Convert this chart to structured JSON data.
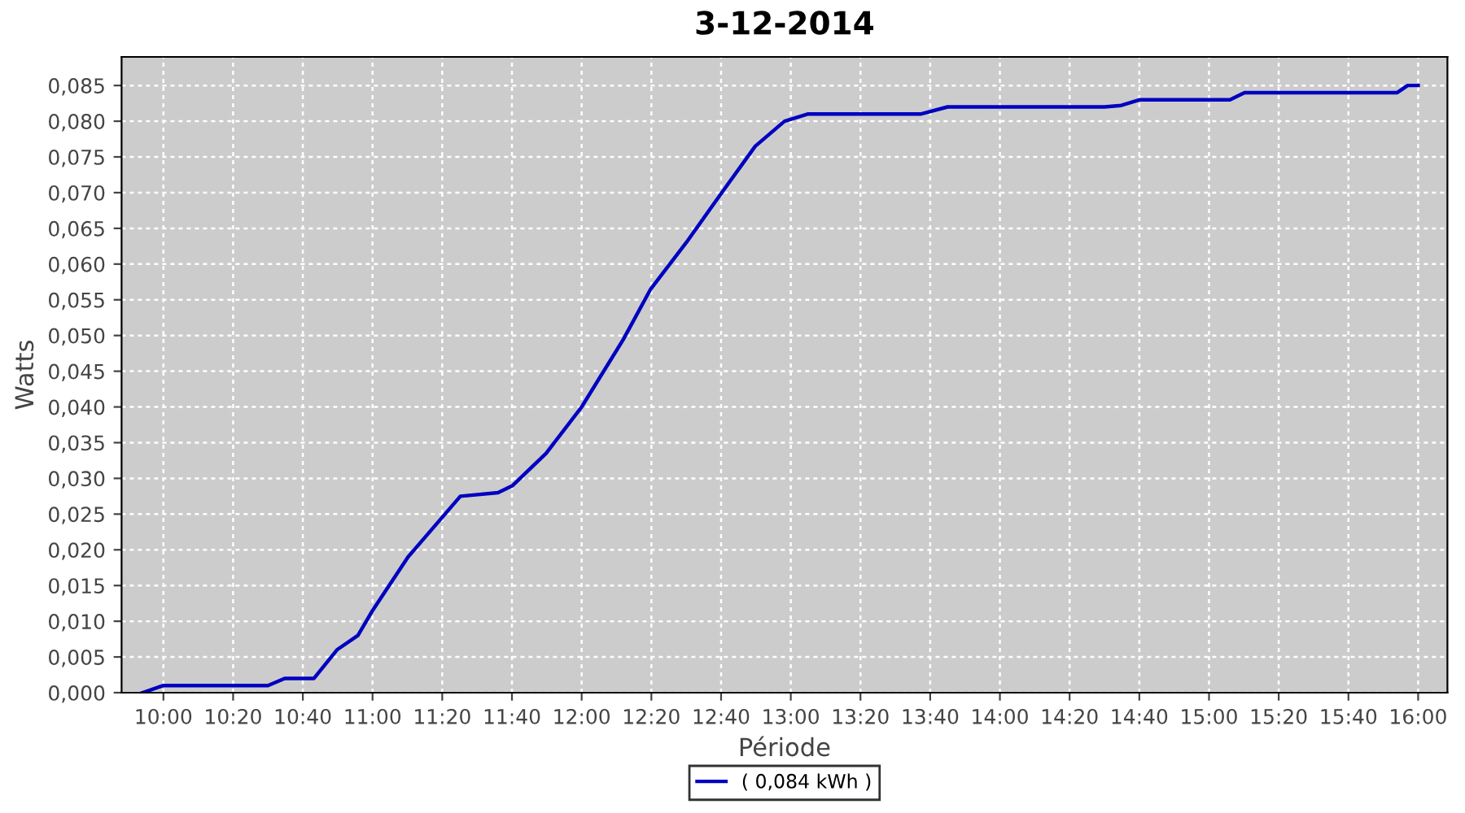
{
  "chart_data": {
    "type": "line",
    "title": "3-12-2014",
    "xlabel": "Période",
    "ylabel": "Watts",
    "series": [
      {
        "name": "( 0,084 kWh )",
        "color": "#0000c0",
        "x": [
          9.9,
          10.0,
          10.1,
          10.5,
          10.58,
          10.72,
          10.83,
          10.93,
          11.0,
          11.17,
          11.42,
          11.6,
          11.67,
          11.83,
          12.0,
          12.2,
          12.33,
          12.5,
          12.67,
          12.83,
          12.97,
          13.08,
          13.62,
          13.75,
          14.5,
          14.58,
          14.67,
          15.1,
          15.17,
          15.9,
          15.95,
          16.0
        ],
        "values": [
          0,
          0.001,
          0.001,
          0.001,
          0.002,
          0.002,
          0.006,
          0.008,
          0.0115,
          0.019,
          0.0275,
          0.028,
          0.029,
          0.0335,
          0.04,
          0.0495,
          0.0565,
          0.063,
          0.07,
          0.0765,
          0.08,
          0.081,
          0.081,
          0.082,
          0.082,
          0.0822,
          0.083,
          0.083,
          0.084,
          0.084,
          0.085,
          0.085
        ]
      }
    ],
    "xlim": [
      9.8,
      16.14
    ],
    "ylim": [
      0,
      0.089
    ],
    "xticks": [
      {
        "value": 10.0,
        "label": "10:00"
      },
      {
        "value": 10.3333,
        "label": "10:20"
      },
      {
        "value": 10.6667,
        "label": "10:40"
      },
      {
        "value": 11.0,
        "label": "11:00"
      },
      {
        "value": 11.3333,
        "label": "11:20"
      },
      {
        "value": 11.6667,
        "label": "11:40"
      },
      {
        "value": 12.0,
        "label": "12:00"
      },
      {
        "value": 12.3333,
        "label": "12:20"
      },
      {
        "value": 12.6667,
        "label": "12:40"
      },
      {
        "value": 13.0,
        "label": "13:00"
      },
      {
        "value": 13.3333,
        "label": "13:20"
      },
      {
        "value": 13.6667,
        "label": "13:40"
      },
      {
        "value": 14.0,
        "label": "14:00"
      },
      {
        "value": 14.3333,
        "label": "14:20"
      },
      {
        "value": 14.6667,
        "label": "14:40"
      },
      {
        "value": 15.0,
        "label": "15:00"
      },
      {
        "value": 15.3333,
        "label": "15:20"
      },
      {
        "value": 15.6667,
        "label": "15:40"
      },
      {
        "value": 16.0,
        "label": "16:00"
      }
    ],
    "yticks": [
      {
        "value": 0,
        "label": "0,000"
      },
      {
        "value": 0.005,
        "label": "0,005"
      },
      {
        "value": 0.01,
        "label": "0,010"
      },
      {
        "value": 0.015,
        "label": "0,015"
      },
      {
        "value": 0.02,
        "label": "0,020"
      },
      {
        "value": 0.025,
        "label": "0,025"
      },
      {
        "value": 0.03,
        "label": "0,030"
      },
      {
        "value": 0.035,
        "label": "0,035"
      },
      {
        "value": 0.04,
        "label": "0,040"
      },
      {
        "value": 0.045,
        "label": "0,045"
      },
      {
        "value": 0.05,
        "label": "0,050"
      },
      {
        "value": 0.055,
        "label": "0,055"
      },
      {
        "value": 0.06,
        "label": "0,060"
      },
      {
        "value": 0.065,
        "label": "0,065"
      },
      {
        "value": 0.07,
        "label": "0,070"
      },
      {
        "value": 0.075,
        "label": "0,075"
      },
      {
        "value": 0.08,
        "label": "0,080"
      },
      {
        "value": 0.085,
        "label": "0,085"
      }
    ],
    "grid": true,
    "legend": "bottom",
    "marker": "none",
    "line_style": "solid"
  }
}
